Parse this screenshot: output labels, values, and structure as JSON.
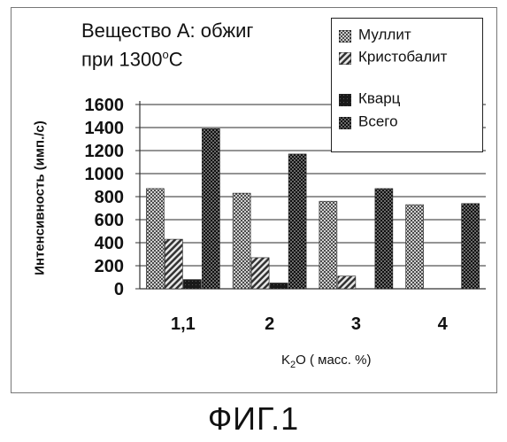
{
  "title_line1": "Вещество А: обжиг",
  "title_line2_prefix": "при 1300",
  "title_line2_sup": "o",
  "title_line2_suffix": "C",
  "fig_caption": "ФИГ.1",
  "chart_data": {
    "type": "bar",
    "categories": [
      "1,1",
      "2",
      "3",
      "4"
    ],
    "series": [
      {
        "name": "Муллит",
        "values": [
          870,
          830,
          760,
          730
        ],
        "color": "#7a7a7a",
        "pattern": "dots"
      },
      {
        "name": "Кристобалит",
        "values": [
          430,
          270,
          110,
          0
        ],
        "color": "#555555",
        "pattern": "hatch"
      },
      {
        "name": "Кварц",
        "values": [
          80,
          50,
          0,
          0
        ],
        "color": "#2a2a2a",
        "pattern": "dark"
      },
      {
        "name": "Всего",
        "values": [
          1390,
          1170,
          870,
          740
        ],
        "color": "#1c1c1c",
        "pattern": "checker"
      }
    ],
    "xlabel_main": "K",
    "xlabel_sub": "2",
    "xlabel_rest": "O ( масс. %)",
    "ylabel": "Интенсивность (имп./с)",
    "ylim": [
      0,
      1600
    ],
    "yticks": [
      0,
      200,
      400,
      600,
      800,
      1000,
      1200,
      1400,
      1600
    ],
    "grid": true,
    "legend_position": "top-right"
  }
}
